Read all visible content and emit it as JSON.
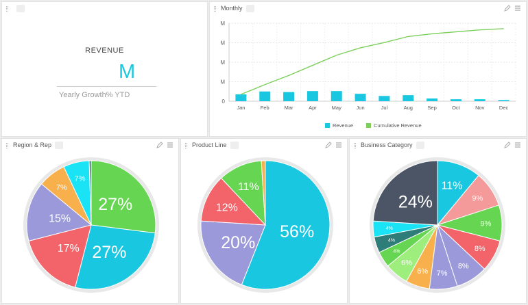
{
  "colors": {
    "cyan": "#19c8e0",
    "green": "#66d652",
    "red": "#f2636a",
    "purple": "#9b99d9",
    "orange": "#f8b04d",
    "navy": "#4c5566",
    "pink": "#f59a9a",
    "teal": "#2f7d78",
    "light_green": "#9eee7d",
    "cumulative_line": "#7bcf5a"
  },
  "kpi": {
    "title": "REVENUE",
    "value": "M",
    "subtitle": "Yearly Growth% YTD"
  },
  "monthly": {
    "title": "Monthly",
    "legend": [
      "Revenue",
      "Cumulative Revenue"
    ],
    "chart_data": {
      "type": "bar",
      "title": "",
      "categories": [
        "Jan",
        "Feb",
        "Mar",
        "Apr",
        "May",
        "Jun",
        "Jul",
        "Aug",
        "Sep",
        "Oct",
        "Nov",
        "Dec"
      ],
      "y_tick_labels": [
        "M",
        "M",
        "M",
        "M",
        "0"
      ],
      "series": [
        {
          "name": "Revenue",
          "type": "bar",
          "values": [
            0.35,
            0.5,
            0.47,
            0.52,
            0.52,
            0.38,
            0.27,
            0.31,
            0.14,
            0.1,
            0.1,
            0.06
          ]
        },
        {
          "name": "Cumulative Revenue",
          "type": "line",
          "values": [
            0.35,
            0.85,
            1.32,
            1.84,
            2.36,
            2.74,
            3.01,
            3.32,
            3.46,
            3.56,
            3.66,
            3.72
          ]
        }
      ],
      "ylim": [
        0,
        4
      ],
      "grid": true,
      "legend": "bottom"
    }
  },
  "pies": [
    {
      "title": "Region & Rep",
      "chart_data": {
        "type": "pie",
        "start_angle_deg": 0,
        "slices": [
          {
            "value": 27,
            "label": "27%",
            "color": "#66d652"
          },
          {
            "value": 27,
            "label": "27%",
            "color": "#19c8e0"
          },
          {
            "value": 17,
            "label": "17%",
            "color": "#f2636a"
          },
          {
            "value": 15,
            "label": "15%",
            "color": "#9b99d9"
          },
          {
            "value": 7,
            "label": "7%",
            "color": "#f8b04d"
          },
          {
            "value": 6.5,
            "label": "7%",
            "color": "#19e3f5"
          },
          {
            "value": 0.5,
            "label": "",
            "color": "#2f7d78"
          }
        ]
      }
    },
    {
      "title": "Product Line",
      "chart_data": {
        "type": "pie",
        "start_angle_deg": 0,
        "slices": [
          {
            "value": 56,
            "label": "56%",
            "color": "#19c8e0"
          },
          {
            "value": 20,
            "label": "20%",
            "color": "#9b99d9"
          },
          {
            "value": 12,
            "label": "12%",
            "color": "#f2636a"
          },
          {
            "value": 11,
            "label": "11%",
            "color": "#66d652"
          },
          {
            "value": 1,
            "label": "",
            "color": "#f8b04d"
          }
        ]
      }
    },
    {
      "title": "Business Category",
      "chart_data": {
        "type": "pie",
        "start_angle_deg": 0,
        "slices": [
          {
            "value": 11,
            "label": "11%",
            "color": "#19c8e0"
          },
          {
            "value": 9,
            "label": "9%",
            "color": "#f59a9a"
          },
          {
            "value": 9,
            "label": "9%",
            "color": "#66d652"
          },
          {
            "value": 8,
            "label": "8%",
            "color": "#f2636a"
          },
          {
            "value": 8,
            "label": "8%",
            "color": "#9b99d9"
          },
          {
            "value": 7,
            "label": "7%",
            "color": "#9b99d9"
          },
          {
            "value": 6,
            "label": "6%",
            "color": "#f8b04d"
          },
          {
            "value": 6,
            "label": "6%",
            "color": "#9eee7d"
          },
          {
            "value": 4,
            "label": "4%",
            "color": "#66d652"
          },
          {
            "value": 4,
            "label": "4%",
            "color": "#2f7d78"
          },
          {
            "value": 4,
            "label": "4%",
            "color": "#19e3f5"
          },
          {
            "value": 24,
            "label": "24%",
            "color": "#4c5566"
          }
        ]
      }
    }
  ]
}
